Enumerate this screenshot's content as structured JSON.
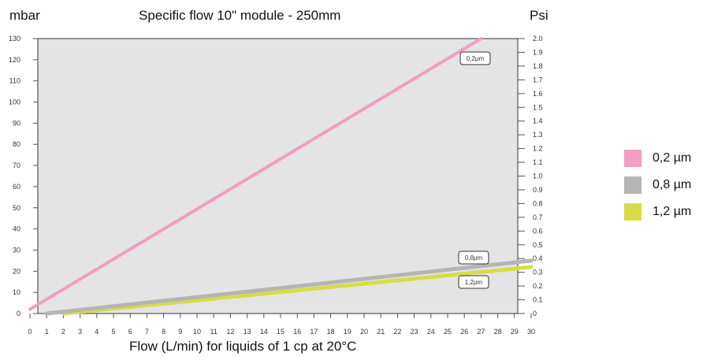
{
  "labels": {
    "left_unit": "mbar",
    "title": "Specific flow 10\" module - 250mm",
    "right_unit": "Psi",
    "xlabel": "Flow (L/min) for liquids of 1 cp at 20°C"
  },
  "chart_data": {
    "type": "line",
    "title": "Specific flow 10\" module - 250mm",
    "xlabel": "Flow (L/min) for liquids of 1 cp at 20°C",
    "ylabel": "mbar",
    "y2label": "Psi",
    "xlim": [
      0,
      30
    ],
    "ylim": [
      0,
      130
    ],
    "y2lim": [
      0,
      2.0
    ],
    "x_ticks": [
      0,
      1,
      2,
      3,
      4,
      5,
      6,
      7,
      8,
      9,
      10,
      11,
      12,
      13,
      14,
      15,
      16,
      17,
      18,
      19,
      20,
      21,
      22,
      23,
      24,
      25,
      26,
      27,
      28,
      29,
      30
    ],
    "y_ticks": [
      0,
      10,
      20,
      30,
      40,
      50,
      60,
      70,
      80,
      90,
      100,
      110,
      120,
      130
    ],
    "y2_ticks": [
      "0",
      "0.1",
      "0.2",
      "0.3",
      "0.4",
      "0.5",
      "0.6",
      "0.7",
      "0.8",
      "0.9",
      "1.0",
      "1.1",
      "1.2",
      "1.3",
      "1.4",
      "1.5",
      "1.6",
      "1.7",
      "1.8",
      "1.9",
      "2.0"
    ],
    "grid": false,
    "background_color": "#e4e4e4",
    "series": [
      {
        "name": "0,2 µm",
        "tag": "0,2µm",
        "color": "#f29dc1",
        "x": [
          0,
          27
        ],
        "y": [
          2,
          130
        ]
      },
      {
        "name": "0,8 µm",
        "tag": "0,8µm",
        "color": "#b5b5b5",
        "x": [
          1,
          30
        ],
        "y": [
          0,
          25
        ]
      },
      {
        "name": "1,2 µm",
        "tag": "1,2µm",
        "color": "#d6dc46",
        "x": [
          2,
          30
        ],
        "y": [
          0,
          22
        ]
      }
    ]
  },
  "legend": {
    "placement": "right",
    "items": [
      {
        "label": "0,2 µm",
        "color": "#f29dc1"
      },
      {
        "label": "0,8 µm",
        "color": "#b5b5b5"
      },
      {
        "label": "1,2 µm",
        "color": "#d6dc46"
      }
    ]
  }
}
